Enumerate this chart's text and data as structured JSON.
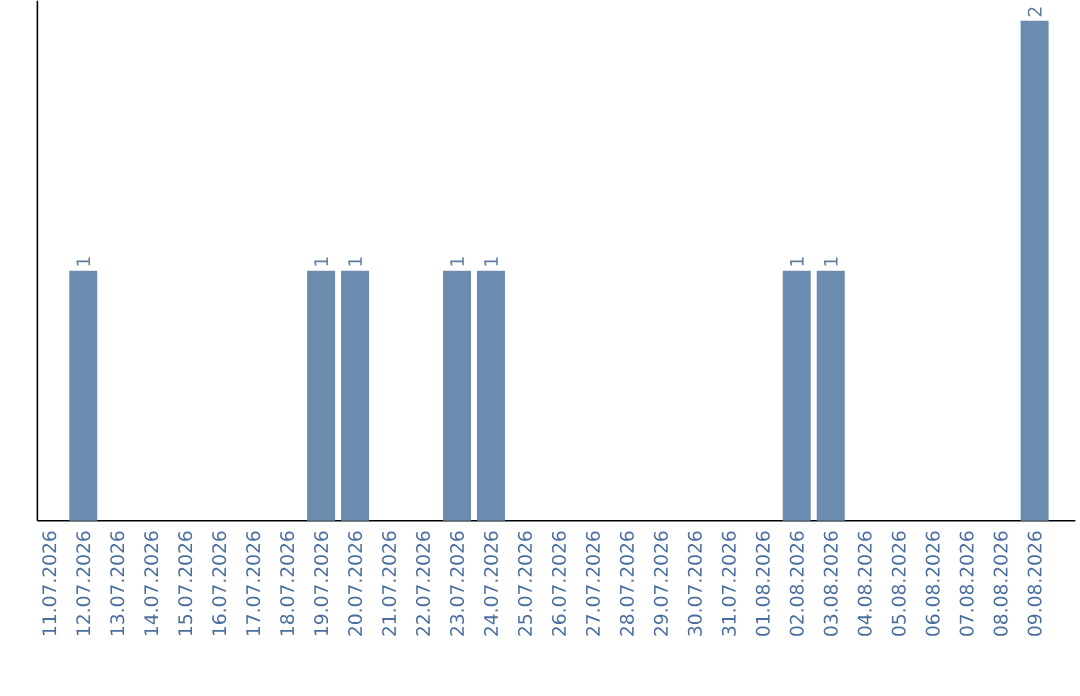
{
  "chart_data": {
    "type": "bar",
    "categories": [
      "11.07.2026",
      "12.07.2026",
      "13.07.2026",
      "14.07.2026",
      "15.07.2026",
      "16.07.2026",
      "17.07.2026",
      "18.07.2026",
      "19.07.2026",
      "20.07.2026",
      "21.07.2026",
      "22.07.2026",
      "23.07.2026",
      "24.07.2026",
      "25.07.2026",
      "26.07.2026",
      "27.07.2026",
      "28.07.2026",
      "29.07.2026",
      "30.07.2026",
      "31.07.2026",
      "01.08.2026",
      "02.08.2026",
      "03.08.2026",
      "04.08.2026",
      "05.08.2026",
      "06.08.2026",
      "07.08.2026",
      "08.08.2026",
      "09.08.2026"
    ],
    "values": [
      0,
      1,
      0,
      0,
      0,
      0,
      0,
      0,
      1,
      1,
      0,
      0,
      1,
      1,
      0,
      0,
      0,
      0,
      0,
      0,
      0,
      0,
      1,
      1,
      0,
      0,
      0,
      0,
      0,
      2
    ],
    "value_labels": [
      null,
      "1",
      null,
      null,
      null,
      null,
      null,
      null,
      "1",
      "1",
      null,
      null,
      "1",
      "1",
      null,
      null,
      null,
      null,
      null,
      null,
      null,
      null,
      "1",
      "1",
      null,
      null,
      null,
      null,
      null,
      "2"
    ],
    "color": "#6b8cae"
  }
}
